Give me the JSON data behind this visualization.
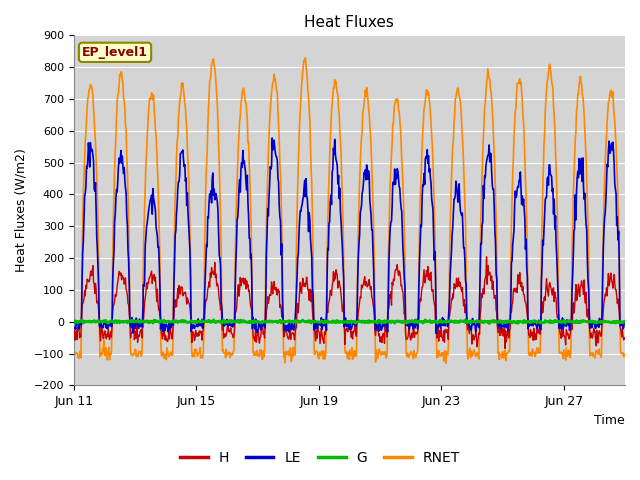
{
  "title": "Heat Fluxes",
  "ylabel": "Heat Fluxes (W/m2)",
  "xlabel": "Time",
  "ylim": [
    -200,
    900
  ],
  "yticks": [
    -200,
    -100,
    0,
    100,
    200,
    300,
    400,
    500,
    600,
    700,
    800,
    900
  ],
  "xtick_labels": [
    "Jun 11",
    "Jun 15",
    "Jun 19",
    "Jun 23",
    "Jun 27"
  ],
  "xtick_hours": [
    0,
    96,
    192,
    288,
    384
  ],
  "legend_label": "EP_level1",
  "series": {
    "H": {
      "color": "#cc0000",
      "lw": 1.0
    },
    "LE": {
      "color": "#0000cc",
      "lw": 1.2
    },
    "G": {
      "color": "#00bb00",
      "lw": 2.0
    },
    "RNET": {
      "color": "#ff8800",
      "lw": 1.2
    }
  },
  "bg_color": "#d4d4d4",
  "grid_color": "#ffffff",
  "days": 18,
  "pts_per_day": 48,
  "xlim_hours": 432
}
